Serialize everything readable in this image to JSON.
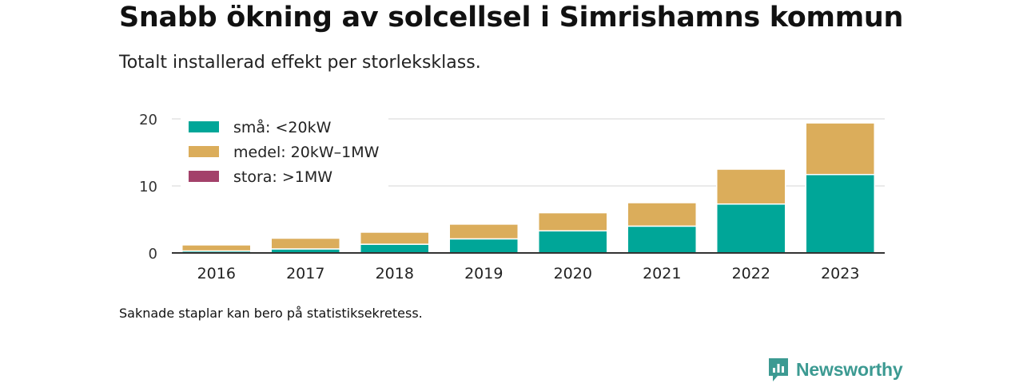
{
  "title": "Snabb ökning av solcellsel i Simrishamns kommun",
  "subtitle": "Totalt installerad effekt per storleksklass.",
  "note": "Saknade staplar kan bero på statistiksekretess.",
  "brand": {
    "name": "Newsworthy",
    "icon": "newsworthy-logo-icon",
    "color": "#3c9a92"
  },
  "chart_data": {
    "type": "bar",
    "stacked": true,
    "categories": [
      "2016",
      "2017",
      "2018",
      "2019",
      "2020",
      "2021",
      "2022",
      "2023"
    ],
    "series": [
      {
        "name": "små: <20kW",
        "color": "#00a698",
        "values": [
          0.3,
          0.6,
          1.3,
          2.1,
          3.3,
          4.0,
          7.3,
          11.7
        ]
      },
      {
        "name": "medel: 20kW–1MW",
        "color": "#dbad5b",
        "values": [
          0.9,
          1.6,
          1.8,
          2.2,
          2.7,
          3.5,
          5.2,
          7.7
        ]
      },
      {
        "name": "stora: >1MW",
        "color": "#a3416a",
        "values": [
          0,
          0,
          0,
          0,
          0,
          0,
          0,
          0
        ]
      }
    ],
    "ylim": [
      0,
      20
    ],
    "yticks": [
      0,
      10,
      20
    ],
    "xlabel": "",
    "ylabel": "",
    "grid": true,
    "legend": "top-left"
  }
}
